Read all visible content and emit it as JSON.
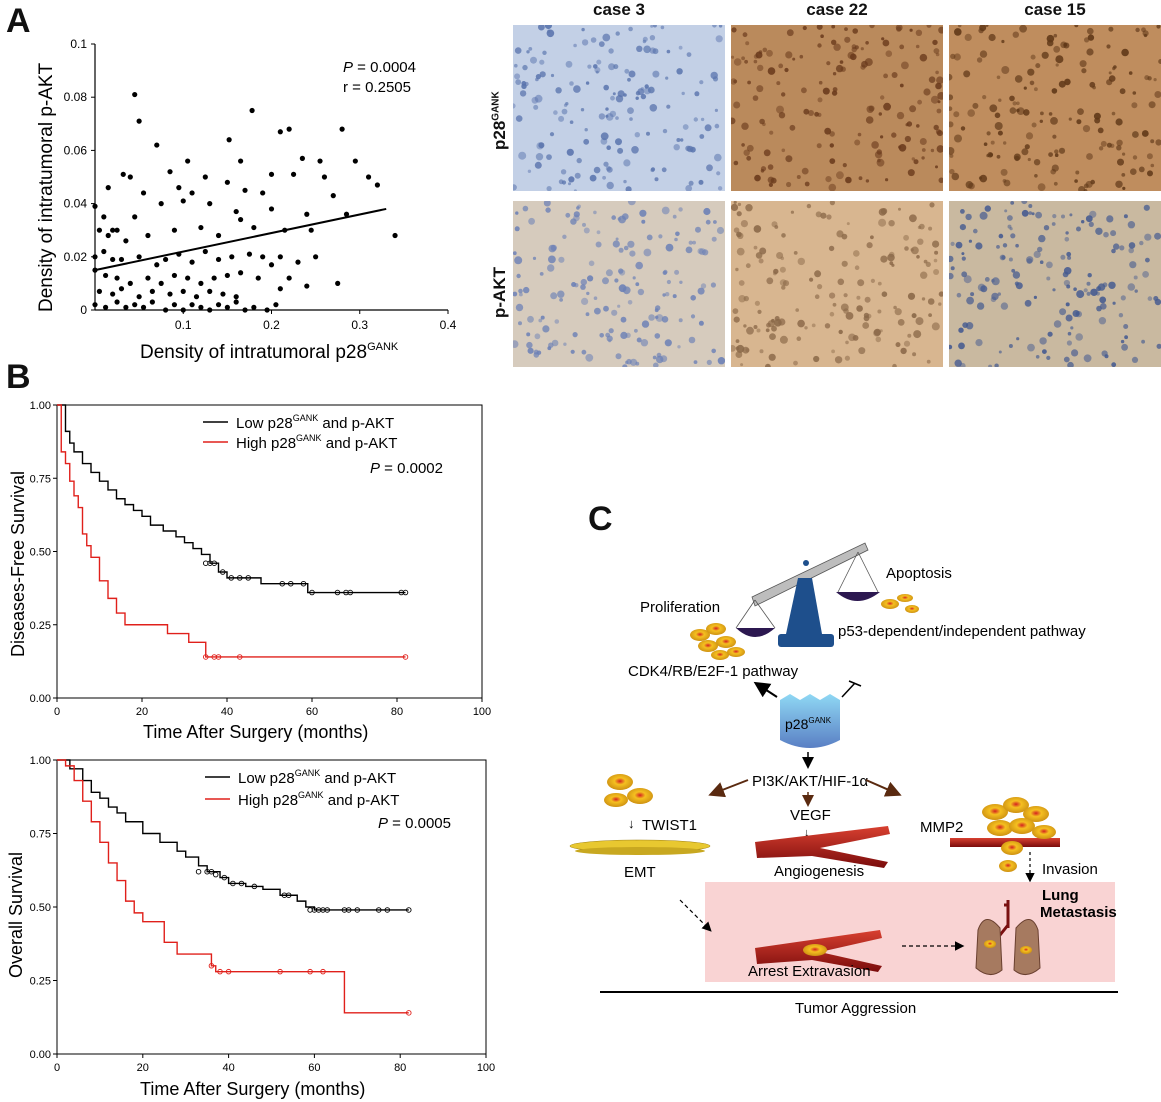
{
  "panels": {
    "a": "A",
    "b": "B",
    "c": "C"
  },
  "scatter": {
    "stats": {
      "p_label": "P",
      "p_value": " = 0.0004",
      "r_text": "r = 0.2505"
    },
    "ylabel": "Density of intratumoral p-AKT",
    "xlabel_main": "Density of intratumoral p28",
    "xlabel_sup": "GANK"
  },
  "micrographs": {
    "cases": [
      "case 3",
      "case 22",
      "case 15"
    ],
    "row_labels": [
      {
        "main": "p28",
        "sup": "GANK"
      },
      {
        "main": "p-AKT",
        "sup": ""
      }
    ],
    "colors": {
      "blue_tissue": "#9fb3d4",
      "brown_tissue": "#b07a45",
      "light_tan": "#ccb08c"
    }
  },
  "km_labels": {
    "low_prefix": "Low p28",
    "high_prefix": "High p28",
    "sup": "GANK",
    "suffix": " and p-AKT",
    "p_label": "P",
    "dfs_p": " = 0.0002",
    "os_p": " = 0.0005"
  },
  "chart_data": [
    {
      "type": "scatter",
      "title": "",
      "xlabel": "Density of intratumoral p28GANK",
      "ylabel": "Density of intratumoral p-AKT",
      "xlim": [
        0,
        0.4
      ],
      "ylim": [
        0,
        0.1
      ],
      "xticks": [
        "0.1",
        "0.2",
        "0.3",
        "0.4"
      ],
      "yticks": [
        "0",
        "0.02",
        "0.04",
        "0.06",
        "0.08",
        "0.1"
      ],
      "annotation": [
        "P = 0.0004",
        "r = 0.2505"
      ],
      "fit_line": [
        [
          0.0,
          0.015
        ],
        [
          0.33,
          0.038
        ]
      ],
      "points": [
        [
          0.045,
          0.081
        ],
        [
          0.05,
          0.071
        ],
        [
          0.178,
          0.075
        ],
        [
          0.07,
          0.062
        ],
        [
          0.105,
          0.056
        ],
        [
          0.152,
          0.064
        ],
        [
          0.165,
          0.056
        ],
        [
          0.21,
          0.067
        ],
        [
          0.22,
          0.068
        ],
        [
          0.28,
          0.068
        ],
        [
          0.235,
          0.057
        ],
        [
          0.255,
          0.056
        ],
        [
          0.295,
          0.056
        ],
        [
          0.032,
          0.051
        ],
        [
          0.04,
          0.05
        ],
        [
          0.085,
          0.052
        ],
        [
          0.125,
          0.05
        ],
        [
          0.15,
          0.048
        ],
        [
          0.2,
          0.051
        ],
        [
          0.225,
          0.051
        ],
        [
          0.26,
          0.05
        ],
        [
          0.31,
          0.05
        ],
        [
          0.32,
          0.047
        ],
        [
          0.015,
          0.046
        ],
        [
          0.055,
          0.044
        ],
        [
          0.095,
          0.046
        ],
        [
          0.11,
          0.044
        ],
        [
          0.17,
          0.045
        ],
        [
          0.19,
          0.044
        ],
        [
          0.27,
          0.043
        ],
        [
          0.0,
          0.039
        ],
        [
          0.01,
          0.035
        ],
        [
          0.02,
          0.03
        ],
        [
          0.025,
          0.03
        ],
        [
          0.045,
          0.035
        ],
        [
          0.075,
          0.04
        ],
        [
          0.1,
          0.041
        ],
        [
          0.13,
          0.04
        ],
        [
          0.16,
          0.037
        ],
        [
          0.2,
          0.038
        ],
        [
          0.24,
          0.036
        ],
        [
          0.285,
          0.036
        ],
        [
          0.005,
          0.03
        ],
        [
          0.015,
          0.028
        ],
        [
          0.035,
          0.026
        ],
        [
          0.06,
          0.028
        ],
        [
          0.09,
          0.03
        ],
        [
          0.12,
          0.031
        ],
        [
          0.14,
          0.028
        ],
        [
          0.165,
          0.034
        ],
        [
          0.18,
          0.031
        ],
        [
          0.215,
          0.03
        ],
        [
          0.245,
          0.03
        ],
        [
          0.34,
          0.028
        ],
        [
          0.0,
          0.02
        ],
        [
          0.01,
          0.022
        ],
        [
          0.02,
          0.019
        ],
        [
          0.03,
          0.019
        ],
        [
          0.05,
          0.02
        ],
        [
          0.07,
          0.017
        ],
        [
          0.08,
          0.019
        ],
        [
          0.095,
          0.021
        ],
        [
          0.11,
          0.018
        ],
        [
          0.125,
          0.022
        ],
        [
          0.14,
          0.019
        ],
        [
          0.155,
          0.02
        ],
        [
          0.175,
          0.021
        ],
        [
          0.19,
          0.02
        ],
        [
          0.2,
          0.017
        ],
        [
          0.21,
          0.02
        ],
        [
          0.23,
          0.018
        ],
        [
          0.25,
          0.02
        ],
        [
          0.0,
          0.015
        ],
        [
          0.012,
          0.013
        ],
        [
          0.025,
          0.012
        ],
        [
          0.04,
          0.01
        ],
        [
          0.06,
          0.012
        ],
        [
          0.075,
          0.01
        ],
        [
          0.09,
          0.013
        ],
        [
          0.105,
          0.012
        ],
        [
          0.12,
          0.01
        ],
        [
          0.135,
          0.012
        ],
        [
          0.15,
          0.013
        ],
        [
          0.165,
          0.014
        ],
        [
          0.185,
          0.012
        ],
        [
          0.22,
          0.012
        ],
        [
          0.24,
          0.009
        ],
        [
          0.275,
          0.01
        ],
        [
          0.005,
          0.007
        ],
        [
          0.02,
          0.006
        ],
        [
          0.03,
          0.008
        ],
        [
          0.05,
          0.005
        ],
        [
          0.065,
          0.007
        ],
        [
          0.085,
          0.006
        ],
        [
          0.1,
          0.007
        ],
        [
          0.115,
          0.005
        ],
        [
          0.13,
          0.007
        ],
        [
          0.145,
          0.006
        ],
        [
          0.16,
          0.005
        ],
        [
          0.21,
          0.008
        ],
        [
          0.0,
          0.002
        ],
        [
          0.012,
          0.001
        ],
        [
          0.025,
          0.003
        ],
        [
          0.035,
          0.001
        ],
        [
          0.045,
          0.002
        ],
        [
          0.055,
          0.001
        ],
        [
          0.065,
          0.003
        ],
        [
          0.08,
          0.0
        ],
        [
          0.09,
          0.002
        ],
        [
          0.1,
          0.0
        ],
        [
          0.11,
          0.002
        ],
        [
          0.12,
          0.001
        ],
        [
          0.13,
          0.0
        ],
        [
          0.14,
          0.002
        ],
        [
          0.15,
          0.001
        ],
        [
          0.16,
          0.003
        ],
        [
          0.17,
          0.0
        ],
        [
          0.18,
          0.001
        ],
        [
          0.195,
          0.0
        ],
        [
          0.205,
          0.002
        ]
      ]
    },
    {
      "type": "line",
      "title": "",
      "xlabel": "Time After Surgery (months)",
      "ylabel": "Diseases-Free Survival",
      "xlim": [
        0,
        100
      ],
      "ylim": [
        0,
        1
      ],
      "xticks": [
        "0",
        "20",
        "40",
        "60",
        "80",
        "100"
      ],
      "yticks": [
        "0.00",
        "0.25",
        "0.50",
        "0.75",
        "1.00"
      ],
      "annotation": "P = 0.0002",
      "series": [
        {
          "name": "Low p28GANK and p-AKT",
          "color": "#000000",
          "steps": [
            [
              0,
              1.0
            ],
            [
              2,
              0.91
            ],
            [
              3,
              0.87
            ],
            [
              4,
              0.84
            ],
            [
              6,
              0.8
            ],
            [
              8,
              0.77
            ],
            [
              10,
              0.74
            ],
            [
              12,
              0.71
            ],
            [
              14,
              0.68
            ],
            [
              16,
              0.66
            ],
            [
              18,
              0.64
            ],
            [
              20,
              0.62
            ],
            [
              22,
              0.59
            ],
            [
              25,
              0.57
            ],
            [
              28,
              0.55
            ],
            [
              30,
              0.53
            ],
            [
              32,
              0.51
            ],
            [
              34,
              0.49
            ],
            [
              36,
              0.46
            ],
            [
              38,
              0.43
            ],
            [
              40,
              0.41
            ],
            [
              48,
              0.39
            ],
            [
              59,
              0.36
            ],
            [
              82,
              0.36
            ]
          ],
          "censored": [
            [
              35,
              0.46
            ],
            [
              36,
              0.46
            ],
            [
              37,
              0.46
            ],
            [
              39,
              0.43
            ],
            [
              41,
              0.41
            ],
            [
              43,
              0.41
            ],
            [
              45,
              0.41
            ],
            [
              53,
              0.39
            ],
            [
              55,
              0.39
            ],
            [
              58,
              0.39
            ],
            [
              60,
              0.36
            ],
            [
              66,
              0.36
            ],
            [
              68,
              0.36
            ],
            [
              69,
              0.36
            ],
            [
              81,
              0.36
            ],
            [
              82,
              0.36
            ]
          ]
        },
        {
          "name": "High p28GANK and p-AKT",
          "color": "#e0201b",
          "steps": [
            [
              0,
              1.0
            ],
            [
              1,
              0.84
            ],
            [
              2,
              0.8
            ],
            [
              3,
              0.74
            ],
            [
              4,
              0.69
            ],
            [
              5,
              0.65
            ],
            [
              6,
              0.56
            ],
            [
              7,
              0.52
            ],
            [
              8,
              0.48
            ],
            [
              10,
              0.4
            ],
            [
              12,
              0.34
            ],
            [
              14,
              0.29
            ],
            [
              16,
              0.25
            ],
            [
              26,
              0.22
            ],
            [
              31,
              0.19
            ],
            [
              35,
              0.14
            ],
            [
              82,
              0.14
            ]
          ],
          "censored": [
            [
              35,
              0.14
            ],
            [
              37,
              0.14
            ],
            [
              38,
              0.14
            ],
            [
              43,
              0.14
            ],
            [
              82,
              0.14
            ]
          ]
        }
      ]
    },
    {
      "type": "line",
      "title": "",
      "xlabel": "Time After Surgery (months)",
      "ylabel": "Overall Survival",
      "xlim": [
        0,
        100
      ],
      "ylim": [
        0,
        1
      ],
      "xticks": [
        "0",
        "20",
        "40",
        "60",
        "80",
        "100"
      ],
      "yticks": [
        "0.00",
        "0.25",
        "0.50",
        "0.75",
        "1.00"
      ],
      "annotation": "P = 0.0005",
      "series": [
        {
          "name": "Low p28GANK and p-AKT",
          "color": "#000000",
          "steps": [
            [
              0,
              1.0
            ],
            [
              3,
              0.97
            ],
            [
              6,
              0.93
            ],
            [
              8,
              0.89
            ],
            [
              10,
              0.87
            ],
            [
              12,
              0.84
            ],
            [
              14,
              0.82
            ],
            [
              16,
              0.79
            ],
            [
              20,
              0.75
            ],
            [
              24,
              0.72
            ],
            [
              28,
              0.69
            ],
            [
              30,
              0.67
            ],
            [
              33,
              0.64
            ],
            [
              35,
              0.62
            ],
            [
              38,
              0.6
            ],
            [
              40,
              0.58
            ],
            [
              44,
              0.57
            ],
            [
              48,
              0.56
            ],
            [
              52,
              0.54
            ],
            [
              56,
              0.52
            ],
            [
              58,
              0.5
            ],
            [
              60,
              0.49
            ],
            [
              82,
              0.49
            ]
          ],
          "censored": [
            [
              33,
              0.62
            ],
            [
              35,
              0.62
            ],
            [
              36,
              0.62
            ],
            [
              37,
              0.61
            ],
            [
              39,
              0.6
            ],
            [
              41,
              0.58
            ],
            [
              43,
              0.58
            ],
            [
              46,
              0.57
            ],
            [
              53,
              0.54
            ],
            [
              54,
              0.54
            ],
            [
              59,
              0.49
            ],
            [
              60,
              0.49
            ],
            [
              61,
              0.49
            ],
            [
              62,
              0.49
            ],
            [
              63,
              0.49
            ],
            [
              67,
              0.49
            ],
            [
              68,
              0.49
            ],
            [
              70,
              0.49
            ],
            [
              75,
              0.49
            ],
            [
              77,
              0.49
            ],
            [
              82,
              0.49
            ]
          ]
        },
        {
          "name": "High p28GANK and p-AKT",
          "color": "#e0201b",
          "steps": [
            [
              0,
              1.0
            ],
            [
              2,
              0.98
            ],
            [
              4,
              0.93
            ],
            [
              6,
              0.86
            ],
            [
              8,
              0.79
            ],
            [
              10,
              0.72
            ],
            [
              12,
              0.65
            ],
            [
              14,
              0.59
            ],
            [
              16,
              0.52
            ],
            [
              18,
              0.48
            ],
            [
              20,
              0.45
            ],
            [
              25,
              0.38
            ],
            [
              28,
              0.34
            ],
            [
              36,
              0.3
            ],
            [
              37,
              0.28
            ],
            [
              67,
              0.28
            ],
            [
              67,
              0.14
            ],
            [
              82,
              0.14
            ]
          ],
          "censored": [
            [
              36,
              0.3
            ],
            [
              38,
              0.28
            ],
            [
              40,
              0.28
            ],
            [
              52,
              0.28
            ],
            [
              59,
              0.28
            ],
            [
              62,
              0.28
            ],
            [
              82,
              0.14
            ]
          ]
        }
      ]
    }
  ],
  "diagram": {
    "labels": {
      "apoptosis": "Apoptosis",
      "proliferation": "Proliferation",
      "p53_pathway": "p53-dependent/independent pathway",
      "cdk_pathway": "CDK4/RB/E2F-1 pathway",
      "center_main": "p28",
      "center_sup": "GANK",
      "pi3k": "PI3K/AKT/HIF-1α",
      "twist": "TWIST1",
      "vegf": "VEGF",
      "mmp2": "MMP2",
      "emt": "EMT",
      "angiogenesis": "Angiogenesis",
      "invasion": "Invasion",
      "lung_metastasis_1": "Lung",
      "lung_metastasis_2": "Metastasis",
      "arrest": "Arrest Extravasion",
      "aggression": "Tumor Aggression"
    },
    "colors": {
      "box": "#f9d3d3",
      "vessel": "#a01818",
      "cell": "#f0b020",
      "dish": "#2c1850",
      "scale_stand": "#1e4f8c",
      "p28": "#7fc6e6"
    }
  }
}
